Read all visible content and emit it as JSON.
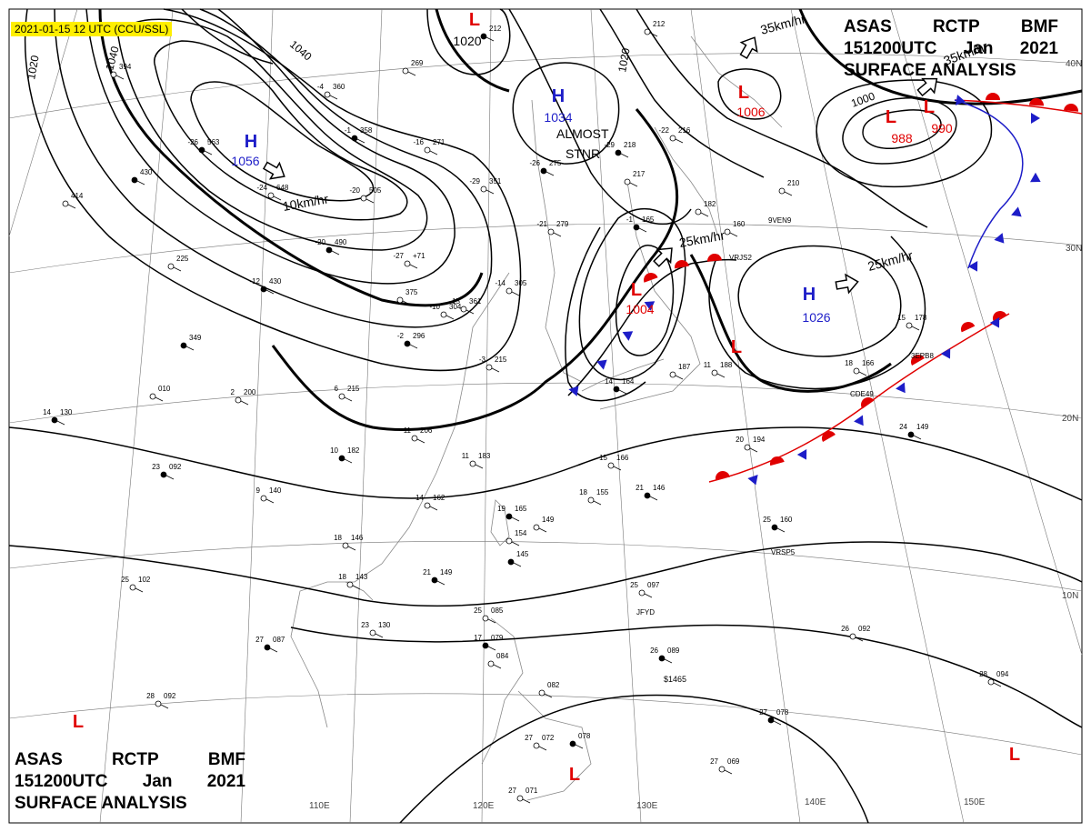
{
  "header": {
    "badge": "2021-01-15 12 UTC (CCU/SSL)"
  },
  "title": {
    "line1": [
      "ASAS",
      "RCTP",
      "BMF"
    ],
    "line2": [
      "151200UTC",
      "Jan",
      "2021"
    ],
    "line3": "SURFACE ANALYSIS"
  },
  "grid": {
    "lat_labels": [
      "40N",
      "30N",
      "20N",
      "10N"
    ],
    "lon_labels": [
      "110E",
      "120E",
      "130E",
      "140E",
      "150E"
    ]
  },
  "pressure_systems": [
    {
      "type": "H",
      "value": "1056",
      "color": "#1d1dc8"
    },
    {
      "type": "H",
      "value": "1034",
      "color": "#1d1dc8"
    },
    {
      "type": "H",
      "value": "1026",
      "color": "#1d1dc8"
    },
    {
      "type": "L",
      "value": "1006",
      "color": "#e00000"
    },
    {
      "type": "L",
      "value": "1004",
      "color": "#e00000"
    },
    {
      "type": "L",
      "value": "988",
      "color": "#e00000"
    },
    {
      "type": "L",
      "value": "990",
      "color": "#e00000"
    },
    {
      "type": "L",
      "value": "1020",
      "color": "#e00000"
    },
    {
      "type": "L",
      "value": "",
      "color": "#e00000"
    },
    {
      "type": "L",
      "value": "",
      "color": "#e00000"
    },
    {
      "type": "L",
      "value": "",
      "color": "#e00000"
    },
    {
      "type": "L",
      "value": "",
      "color": "#e00000"
    }
  ],
  "isobar_labels": [
    "1020",
    "1040",
    "1040",
    "1020",
    "1000"
  ],
  "motion_labels": [
    "10km/hr",
    "35km/hr",
    "25km/hr",
    "25km/hr",
    "35km/hr"
  ],
  "annotations": [
    "ALMOST",
    "STNR"
  ],
  "ship_labels": [
    "VRJS2",
    "3EPB8",
    "CDE49",
    "VRSP5",
    "JFYD",
    "9VEN9"
  ],
  "stations": [
    {
      "t": "-26",
      "p": "563"
    },
    {
      "t": "-24",
      "p": "648"
    },
    {
      "t": "-20",
      "p": "505"
    },
    {
      "t": "-20",
      "p": "490"
    },
    {
      "t": "-27",
      "p": "+71"
    },
    {
      "t": "-16",
      "p": "271"
    },
    {
      "t": "-12",
      "p": "430"
    },
    {
      "t": "-15",
      "p": "361"
    },
    {
      "t": "-10",
      "p": "304"
    },
    {
      "t": "-2",
      "p": "296"
    },
    {
      "t": "",
      "p": "375"
    },
    {
      "t": "-4",
      "p": "360"
    },
    {
      "t": "-1",
      "p": "358"
    },
    {
      "t": "",
      "p": "269"
    },
    {
      "t": "-29",
      "p": "351"
    },
    {
      "t": "-26",
      "p": "275"
    },
    {
      "t": "-21",
      "p": "279"
    },
    {
      "t": "-14",
      "p": "305"
    },
    {
      "t": "-29",
      "p": "218"
    },
    {
      "t": "-22",
      "p": "216"
    },
    {
      "t": "",
      "p": "217"
    },
    {
      "t": "-1",
      "p": "165"
    },
    {
      "t": "",
      "p": "182"
    },
    {
      "t": "",
      "p": "160"
    },
    {
      "t": "",
      "p": "212"
    },
    {
      "t": "",
      "p": "210"
    },
    {
      "t": "",
      "p": "394"
    },
    {
      "t": "",
      "p": "430"
    },
    {
      "t": "",
      "p": "414"
    },
    {
      "t": "",
      "p": "225"
    },
    {
      "t": "",
      "p": "349"
    },
    {
      "t": "",
      "p": "010"
    },
    {
      "t": "2",
      "p": "200"
    },
    {
      "t": "14",
      "p": "130"
    },
    {
      "t": "6",
      "p": "215"
    },
    {
      "t": "-3",
      "p": "215"
    },
    {
      "t": "10",
      "p": "182"
    },
    {
      "t": "11",
      "p": "206"
    },
    {
      "t": "11",
      "p": "183"
    },
    {
      "t": "23",
      "p": "092"
    },
    {
      "t": "9",
      "p": "140"
    },
    {
      "t": "14",
      "p": "162"
    },
    {
      "t": "19",
      "p": "165"
    },
    {
      "t": "",
      "p": "149"
    },
    {
      "t": "18",
      "p": "155"
    },
    {
      "t": "21",
      "p": "146"
    },
    {
      "t": "15",
      "p": "166"
    },
    {
      "t": "",
      "p": "154"
    },
    {
      "t": "",
      "p": "145"
    },
    {
      "t": "18",
      "p": "146"
    },
    {
      "t": "18",
      "p": "143"
    },
    {
      "t": "21",
      "p": "149"
    },
    {
      "t": "25",
      "p": "102"
    },
    {
      "t": "23",
      "p": "130"
    },
    {
      "t": "27",
      "p": "087"
    },
    {
      "t": "28",
      "p": "092"
    },
    {
      "t": "25",
      "p": "085"
    },
    {
      "t": "17",
      "p": "079"
    },
    {
      "t": "",
      "p": "084"
    },
    {
      "t": "25",
      "p": "097"
    },
    {
      "t": "26",
      "p": "089"
    },
    {
      "t": "26",
      "p": "092"
    },
    {
      "t": "28",
      "p": "094"
    },
    {
      "t": "27",
      "p": "078"
    },
    {
      "t": "27",
      "p": "069"
    },
    {
      "t": "",
      "p": "082"
    },
    {
      "t": "",
      "p": "078"
    },
    {
      "t": "27",
      "p": "072"
    },
    {
      "t": "27",
      "p": "071"
    },
    {
      "t": "25",
      "p": "160"
    },
    {
      "t": "15",
      "p": "178"
    },
    {
      "t": "18",
      "p": "166"
    },
    {
      "t": "24",
      "p": "149"
    },
    {
      "t": "20",
      "p": "194"
    },
    {
      "t": "11",
      "p": "188"
    },
    {
      "t": "14",
      "p": "164"
    },
    {
      "t": "",
      "p": "187"
    },
    {
      "t": "",
      "p": "212"
    }
  ],
  "extra_text": [
    "$1465"
  ]
}
